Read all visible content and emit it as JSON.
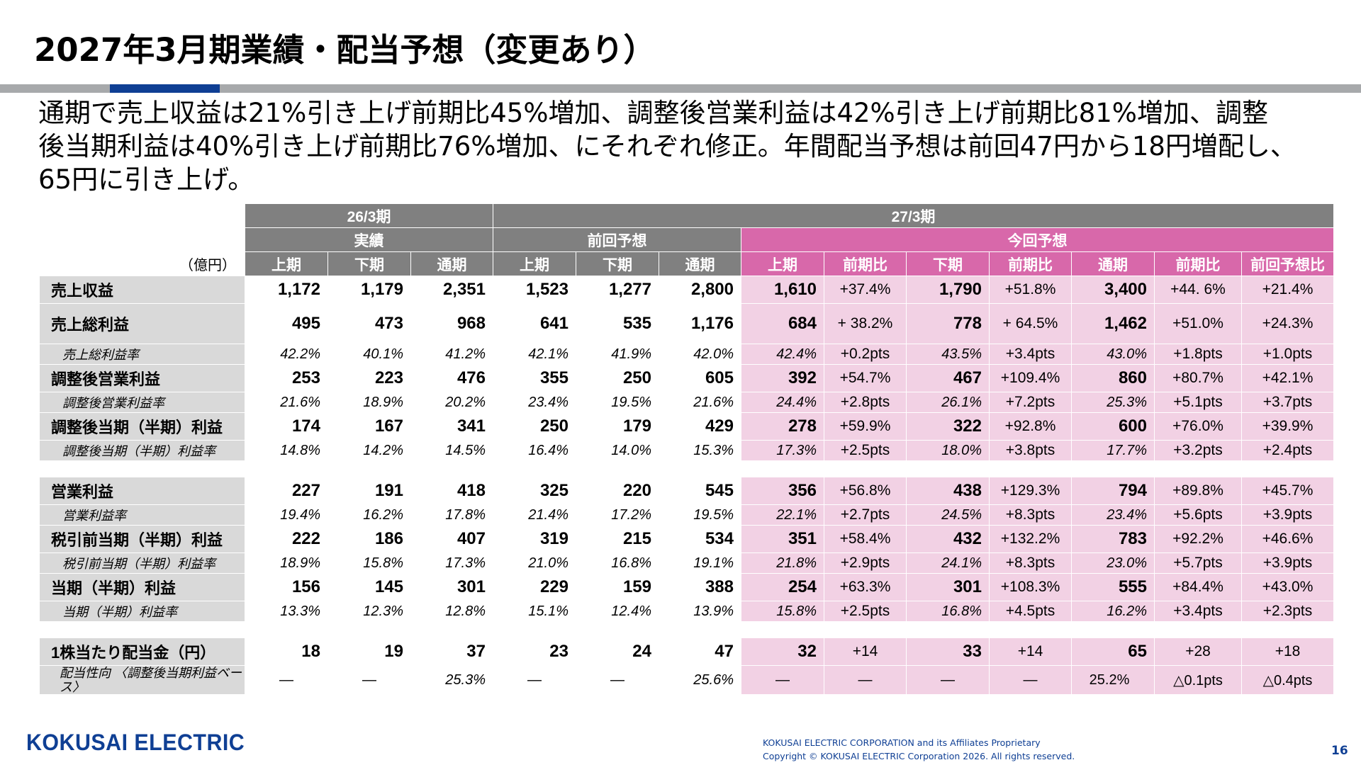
{
  "title": "2027年3月期業績・配当予想（変更あり）",
  "summary_lines": [
    "通期で売上収益は21%引き上げ前期比45%増加、調整後営業利益は42%引き上げ前期比81%増加、調整",
    "後当期利益は40%引き上げ前期比76%増加、にそれぞれ修正。年間配当予想は前回47円から18円増配し、",
    "65円に引き上げ。"
  ],
  "table": {
    "unit": "（億円）",
    "group_26": "26/3期",
    "group_27": "27/3期",
    "sub_actual": "実績",
    "sub_prev": "前回予想",
    "sub_now": "今回予想",
    "cols": [
      "上期",
      "下期",
      "通期",
      "上期",
      "下期",
      "通期",
      "上期",
      "前期比",
      "下期",
      "前期比",
      "通期",
      "前期比",
      "前回予想比"
    ],
    "rows": [
      {
        "label": "売上収益",
        "type": "main",
        "cells": [
          "1,172",
          "1,179",
          "2,351",
          "1,523",
          "1,277",
          "2,800",
          "1,610",
          "+37.4%",
          "1,790",
          "+51.8%",
          "3,400",
          "+44. 6%",
          "+21.4%"
        ]
      },
      {
        "label": "売上総利益",
        "type": "tall",
        "cells": [
          "495",
          "473",
          "968",
          "641",
          "535",
          "1,176",
          "684",
          "+\n38.2%",
          "778",
          "+\n64.5%",
          "1,462",
          "+51.0%",
          "+24.3%"
        ]
      },
      {
        "label": "売上総利益率",
        "type": "sub",
        "cells": [
          "42.2%",
          "40.1%",
          "41.2%",
          "42.1%",
          "41.9%",
          "42.0%",
          "42.4%",
          "+0.2pts",
          "43.5%",
          "+3.4pts",
          "43.0%",
          "+1.8pts",
          "+1.0pts"
        ]
      },
      {
        "label": "調整後営業利益",
        "type": "main",
        "cells": [
          "253",
          "223",
          "476",
          "355",
          "250",
          "605",
          "392",
          "+54.7%",
          "467",
          "+109.4%",
          "860",
          "+80.7%",
          "+42.1%"
        ]
      },
      {
        "label": "調整後営業利益率",
        "type": "sub",
        "cells": [
          "21.6%",
          "18.9%",
          "20.2%",
          "23.4%",
          "19.5%",
          "21.6%",
          "24.4%",
          "+2.8pts",
          "26.1%",
          "+7.2pts",
          "25.3%",
          "+5.1pts",
          "+3.7pts"
        ]
      },
      {
        "label": "調整後当期（半期）利益",
        "type": "main",
        "cells": [
          "174",
          "167",
          "341",
          "250",
          "179",
          "429",
          "278",
          "+59.9%",
          "322",
          "+92.8%",
          "600",
          "+76.0%",
          "+39.9%"
        ]
      },
      {
        "label": "調整後当期（半期）利益率",
        "type": "sub",
        "cells": [
          "14.8%",
          "14.2%",
          "14.5%",
          "16.4%",
          "14.0%",
          "15.3%",
          "17.3%",
          "+2.5pts",
          "18.0%",
          "+3.8pts",
          "17.7%",
          "+3.2pts",
          "+2.4pts"
        ]
      },
      {
        "type": "gap"
      },
      {
        "label": "営業利益",
        "type": "main",
        "cells": [
          "227",
          "191",
          "418",
          "325",
          "220",
          "545",
          "356",
          "+56.8%",
          "438",
          "+129.3%",
          "794",
          "+89.8%",
          "+45.7%"
        ]
      },
      {
        "label": "営業利益率",
        "type": "sub",
        "cells": [
          "19.4%",
          "16.2%",
          "17.8%",
          "21.4%",
          "17.2%",
          "19.5%",
          "22.1%",
          "+2.7pts",
          "24.5%",
          "+8.3pts",
          "23.4%",
          "+5.6pts",
          "+3.9pts"
        ]
      },
      {
        "label": "税引前当期（半期）利益",
        "type": "main",
        "cells": [
          "222",
          "186",
          "407",
          "319",
          "215",
          "534",
          "351",
          "+58.4%",
          "432",
          "+132.2%",
          "783",
          "+92.2%",
          "+46.6%"
        ]
      },
      {
        "label": "税引前当期（半期）利益率",
        "type": "sub",
        "cells": [
          "18.9%",
          "15.8%",
          "17.3%",
          "21.0%",
          "16.8%",
          "19.1%",
          "21.8%",
          "+2.9pts",
          "24.1%",
          "+8.3pts",
          "23.0%",
          "+5.7pts",
          "+3.9pts"
        ]
      },
      {
        "label": "当期（半期）利益",
        "type": "main",
        "cells": [
          "156",
          "145",
          "301",
          "229",
          "159",
          "388",
          "254",
          "+63.3%",
          "301",
          "+108.3%",
          "555",
          "+84.4%",
          "+43.0%"
        ]
      },
      {
        "label": "当期（半期）利益率",
        "type": "sub",
        "cells": [
          "13.3%",
          "12.3%",
          "12.8%",
          "15.1%",
          "12.4%",
          "13.9%",
          "15.8%",
          "+2.5pts",
          "16.8%",
          "+4.5pts",
          "16.2%",
          "+3.4pts",
          "+2.3pts"
        ]
      },
      {
        "type": "gap"
      },
      {
        "label": "1株当たり配当金（円）",
        "type": "main",
        "cells": [
          "18",
          "19",
          "37",
          "23",
          "24",
          "47",
          "32",
          "+14",
          "33",
          "+14",
          "65",
          "+28",
          "+18"
        ]
      },
      {
        "label": "配当性向\n〈調整後当期利益ベース〉",
        "type": "sub2",
        "cells": [
          "—",
          "—",
          "25.3%",
          "—",
          "—",
          "25.6%",
          "—",
          "—",
          "—",
          "—",
          "25.2%",
          "△0.1pts",
          "△0.4pts"
        ]
      }
    ]
  },
  "footer": {
    "logo": "KOKUSAI ELECTRIC",
    "copy1": "KOKUSAI ELECTRIC CORPORATION and its Affiliates Proprietary",
    "copy2": "Copyright © KOKUSAI ELECTRIC Corporation 2026. All rights reserved.",
    "page": "16"
  },
  "colors": {
    "accent_blue": "#0f3f94",
    "header_gray": "#808080",
    "pink_header": "#d868aa",
    "pink_cell": "#f2d1e4",
    "label_gray": "#d9d9d9"
  }
}
